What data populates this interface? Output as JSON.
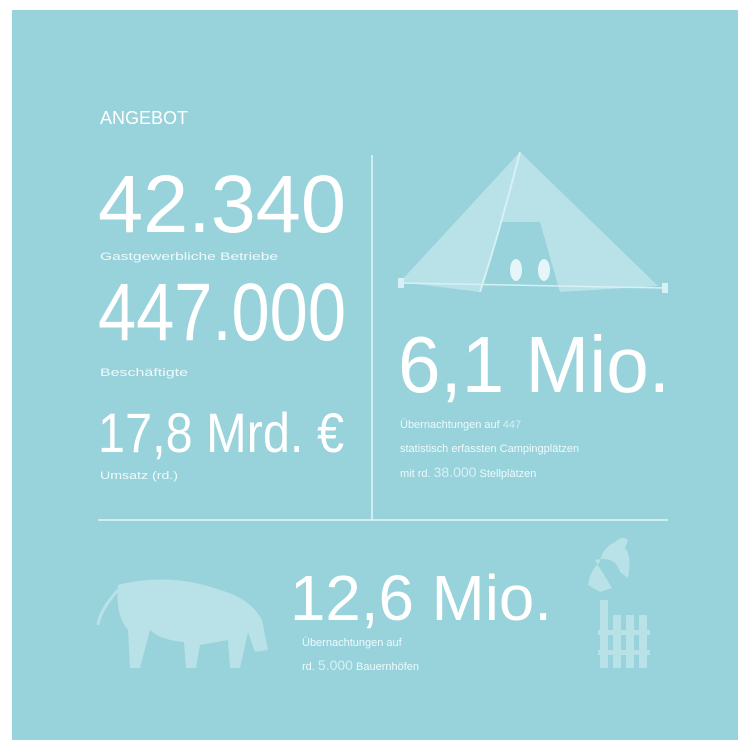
{
  "heading": "ANGEBOT",
  "stats": [
    {
      "value": "42.340",
      "label": "Gastgewerbliche Betriebe"
    },
    {
      "value": "447.000",
      "label": "Beschäftigte"
    },
    {
      "value": "17,8 Mrd. €",
      "label": "Umsatz (rd.)"
    }
  ],
  "camping": {
    "value": "6,1 Mio.",
    "line1": [
      "Übernachtungen auf",
      "447"
    ],
    "line2": "statistisch erfassten Campingplätzen",
    "line3": [
      "mit rd.",
      "38.000",
      "Stellplätzen"
    ]
  },
  "farm": {
    "value": "12,6 Mio.",
    "line1": "Übernachtungen auf",
    "line2": [
      "rd.",
      "5.000",
      "Bauernhöfen"
    ]
  }
}
